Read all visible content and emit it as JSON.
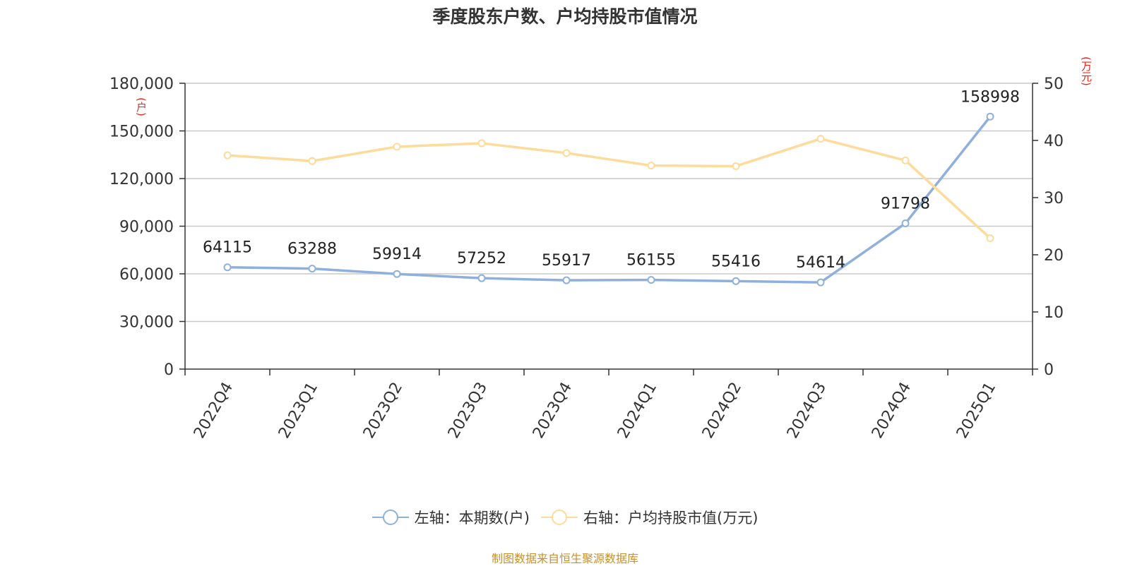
{
  "chart_data": {
    "type": "line",
    "title": "季度股东户数、户均持股市值情况",
    "categories": [
      "2022Q4",
      "2023Q1",
      "2023Q2",
      "2023Q3",
      "2023Q4",
      "2024Q1",
      "2024Q2",
      "2024Q3",
      "2024Q4",
      "2025Q1"
    ],
    "left_axis": {
      "unit": "(户)",
      "ylim": [
        0,
        180000
      ],
      "ticks": [
        "0",
        "30,000",
        "60,000",
        "90,000",
        "120,000",
        "150,000",
        "180,000"
      ]
    },
    "right_axis": {
      "unit": "(万元)",
      "ylim": [
        0,
        50
      ],
      "ticks": [
        "0",
        "10",
        "20",
        "30",
        "40",
        "50"
      ]
    },
    "series": [
      {
        "name": "左轴：本期数(户)",
        "axis": "left",
        "color": "#8fb0dc",
        "values": [
          64115,
          63288,
          59914,
          57252,
          55917,
          56155,
          55416,
          54614,
          91798,
          158998
        ],
        "labels": [
          "64115",
          "63288",
          "59914",
          "57252",
          "55917",
          "56155",
          "55416",
          "54614",
          "91798",
          "158998"
        ]
      },
      {
        "name": "右轴：户均持股市值(万元)",
        "axis": "right",
        "color": "#fddb9b",
        "values": [
          37.4,
          36.4,
          38.9,
          39.5,
          37.8,
          35.6,
          35.5,
          40.3,
          36.5,
          22.9
        ]
      }
    ],
    "grid": true,
    "legend_position": "bottom-center",
    "source": "制图数据来自恒生聚源数据库"
  }
}
